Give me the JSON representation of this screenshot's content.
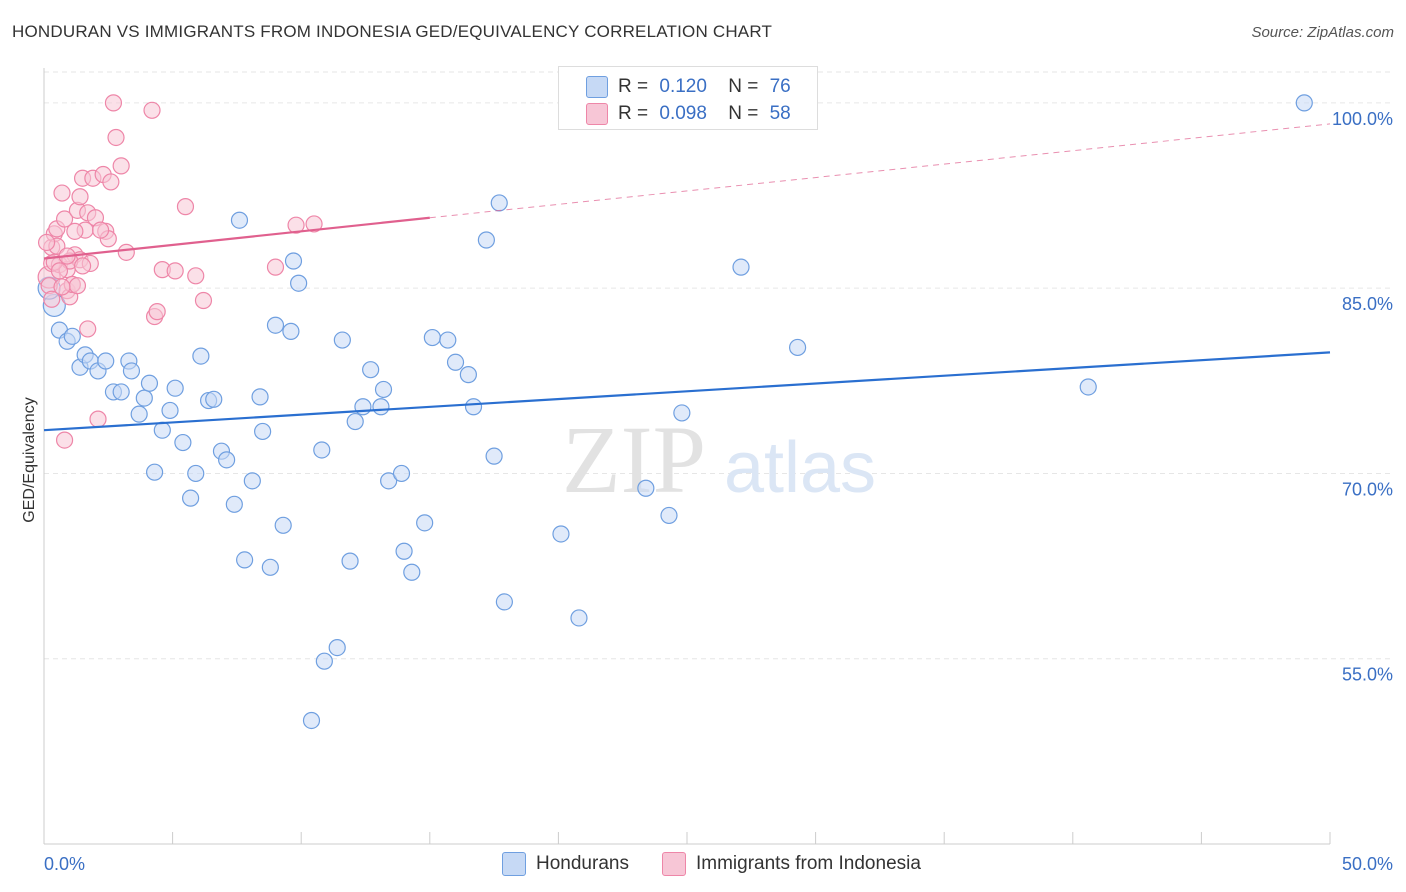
{
  "title": "HONDURAN VS IMMIGRANTS FROM INDONESIA GED/EQUIVALENCY CORRELATION CHART",
  "source": "Source: ZipAtlas.com",
  "watermark": {
    "zip": "ZIP",
    "atlas": "atlas"
  },
  "legend": {
    "r_label": "R =",
    "n_label": "N =",
    "rows": [
      {
        "r": "0.120",
        "n": "76"
      },
      {
        "r": "0.098",
        "n": "58"
      }
    ]
  },
  "bottom_legend": [
    "Hondurans",
    "Immigrants from Indonesia"
  ],
  "chart_data": {
    "type": "scatter",
    "title": "HONDURAN VS IMMIGRANTS FROM INDONESIA GED/EQUIVALENCY CORRELATION CHART",
    "ylabel": "GED/Equivalency",
    "xlabel": "",
    "xlim": [
      0,
      50
    ],
    "ylim": [
      40,
      102.5
    ],
    "x_tick_labels": [
      "0.0%",
      "50.0%"
    ],
    "y_ticks": [
      55,
      70,
      85,
      100
    ],
    "y_tick_labels": [
      "55.0%",
      "70.0%",
      "85.0%",
      "100.0%"
    ],
    "grid": true,
    "legend_placement": "top-center",
    "series": [
      {
        "name": "Hondurans",
        "color": "#6f9fe0",
        "fill": "#c6d9f5",
        "line_color": "#2a6fd0",
        "r": 0.12,
        "n": 76,
        "trend": {
          "x": [
            0,
            50
          ],
          "y": [
            73.5,
            79.8
          ]
        },
        "points": [
          [
            0.4,
            83.6
          ],
          [
            0.6,
            81.6
          ],
          [
            0.9,
            80.7
          ],
          [
            1.1,
            81.1
          ],
          [
            1.4,
            78.6
          ],
          [
            1.6,
            79.6
          ],
          [
            1.8,
            79.1
          ],
          [
            2.1,
            78.3
          ],
          [
            2.4,
            79.1
          ],
          [
            2.7,
            76.6
          ],
          [
            3.0,
            76.6
          ],
          [
            3.3,
            79.1
          ],
          [
            3.4,
            78.3
          ],
          [
            3.7,
            74.8
          ],
          [
            3.9,
            76.1
          ],
          [
            4.1,
            77.3
          ],
          [
            4.3,
            70.1
          ],
          [
            4.6,
            73.5
          ],
          [
            4.9,
            75.1
          ],
          [
            5.1,
            76.9
          ],
          [
            5.4,
            72.5
          ],
          [
            5.7,
            68.0
          ],
          [
            5.9,
            70.0
          ],
          [
            6.1,
            79.5
          ],
          [
            6.4,
            75.9
          ],
          [
            6.6,
            76.0
          ],
          [
            6.9,
            71.8
          ],
          [
            7.1,
            71.1
          ],
          [
            7.4,
            67.5
          ],
          [
            7.6,
            90.5
          ],
          [
            7.8,
            63.0
          ],
          [
            8.1,
            69.4
          ],
          [
            8.4,
            76.2
          ],
          [
            8.5,
            73.4
          ],
          [
            8.8,
            62.4
          ],
          [
            9.0,
            82.0
          ],
          [
            9.3,
            65.8
          ],
          [
            9.6,
            81.5
          ],
          [
            9.7,
            87.2
          ],
          [
            9.9,
            85.4
          ],
          [
            10.4,
            50.0
          ],
          [
            10.8,
            71.9
          ],
          [
            10.9,
            54.8
          ],
          [
            11.4,
            55.9
          ],
          [
            11.6,
            80.8
          ],
          [
            11.9,
            62.9
          ],
          [
            12.1,
            74.2
          ],
          [
            12.4,
            75.4
          ],
          [
            12.7,
            78.4
          ],
          [
            13.1,
            75.4
          ],
          [
            13.2,
            76.8
          ],
          [
            13.4,
            69.4
          ],
          [
            13.9,
            70.0
          ],
          [
            14.0,
            63.7
          ],
          [
            14.3,
            62.0
          ],
          [
            14.8,
            66.0
          ],
          [
            15.1,
            81.0
          ],
          [
            15.7,
            80.8
          ],
          [
            16.0,
            79.0
          ],
          [
            16.5,
            78.0
          ],
          [
            16.7,
            75.4
          ],
          [
            17.2,
            88.9
          ],
          [
            17.5,
            71.4
          ],
          [
            17.7,
            91.9
          ],
          [
            17.9,
            59.6
          ],
          [
            20.1,
            65.1
          ],
          [
            20.8,
            58.3
          ],
          [
            23.4,
            68.8
          ],
          [
            24.3,
            66.6
          ],
          [
            24.8,
            74.9
          ],
          [
            27.1,
            86.7
          ],
          [
            29.3,
            80.2
          ],
          [
            28.5,
            101.5
          ],
          [
            40.6,
            77.0
          ],
          [
            49.0,
            100.0
          ],
          [
            0.2,
            85.0
          ]
        ]
      },
      {
        "name": "Immigrants from Indonesia",
        "color": "#ee86a8",
        "fill": "#f7c6d6",
        "line_color": "#e0608e",
        "r": 0.098,
        "n": 58,
        "trend": {
          "x": [
            0,
            15
          ],
          "y": [
            87.4,
            90.7
          ]
        },
        "trend_extension": {
          "x": [
            15,
            50
          ],
          "y": [
            90.7,
            98.3
          ]
        },
        "points": [
          [
            0.2,
            85.9
          ],
          [
            0.2,
            85.2
          ],
          [
            0.3,
            87.0
          ],
          [
            0.3,
            88.3
          ],
          [
            0.4,
            89.4
          ],
          [
            0.5,
            89.8
          ],
          [
            0.6,
            86.9
          ],
          [
            0.7,
            92.7
          ],
          [
            0.8,
            90.6
          ],
          [
            0.9,
            86.5
          ],
          [
            0.9,
            84.8
          ],
          [
            1.0,
            84.3
          ],
          [
            1.1,
            85.3
          ],
          [
            1.2,
            87.7
          ],
          [
            1.3,
            91.3
          ],
          [
            1.4,
            92.4
          ],
          [
            1.4,
            87.3
          ],
          [
            1.5,
            93.9
          ],
          [
            1.6,
            89.7
          ],
          [
            1.7,
            91.1
          ],
          [
            1.8,
            87.0
          ],
          [
            1.9,
            93.9
          ],
          [
            2.0,
            90.7
          ],
          [
            2.1,
            74.4
          ],
          [
            2.3,
            94.2
          ],
          [
            2.4,
            89.6
          ],
          [
            2.5,
            89.0
          ],
          [
            2.6,
            93.6
          ],
          [
            2.7,
            100.0
          ],
          [
            2.8,
            97.2
          ],
          [
            3.0,
            94.9
          ],
          [
            3.2,
            87.9
          ],
          [
            0.8,
            72.7
          ],
          [
            1.7,
            81.7
          ],
          [
            4.3,
            82.7
          ],
          [
            4.4,
            83.1
          ],
          [
            4.6,
            86.5
          ],
          [
            5.1,
            86.4
          ],
          [
            5.5,
            91.6
          ],
          [
            5.9,
            86.0
          ],
          [
            6.2,
            84.0
          ],
          [
            4.2,
            99.4
          ],
          [
            9.0,
            86.7
          ],
          [
            9.8,
            90.1
          ],
          [
            10.5,
            90.2
          ],
          [
            0.3,
            84.1
          ],
          [
            0.5,
            88.4
          ],
          [
            1.0,
            87.2
          ],
          [
            1.1,
            85.3
          ],
          [
            1.3,
            85.2
          ],
          [
            0.4,
            87.1
          ],
          [
            0.6,
            86.4
          ],
          [
            0.7,
            85.1
          ],
          [
            1.2,
            89.6
          ],
          [
            2.2,
            89.7
          ],
          [
            0.9,
            87.6
          ],
          [
            1.5,
            86.8
          ],
          [
            0.1,
            88.7
          ]
        ]
      }
    ]
  }
}
